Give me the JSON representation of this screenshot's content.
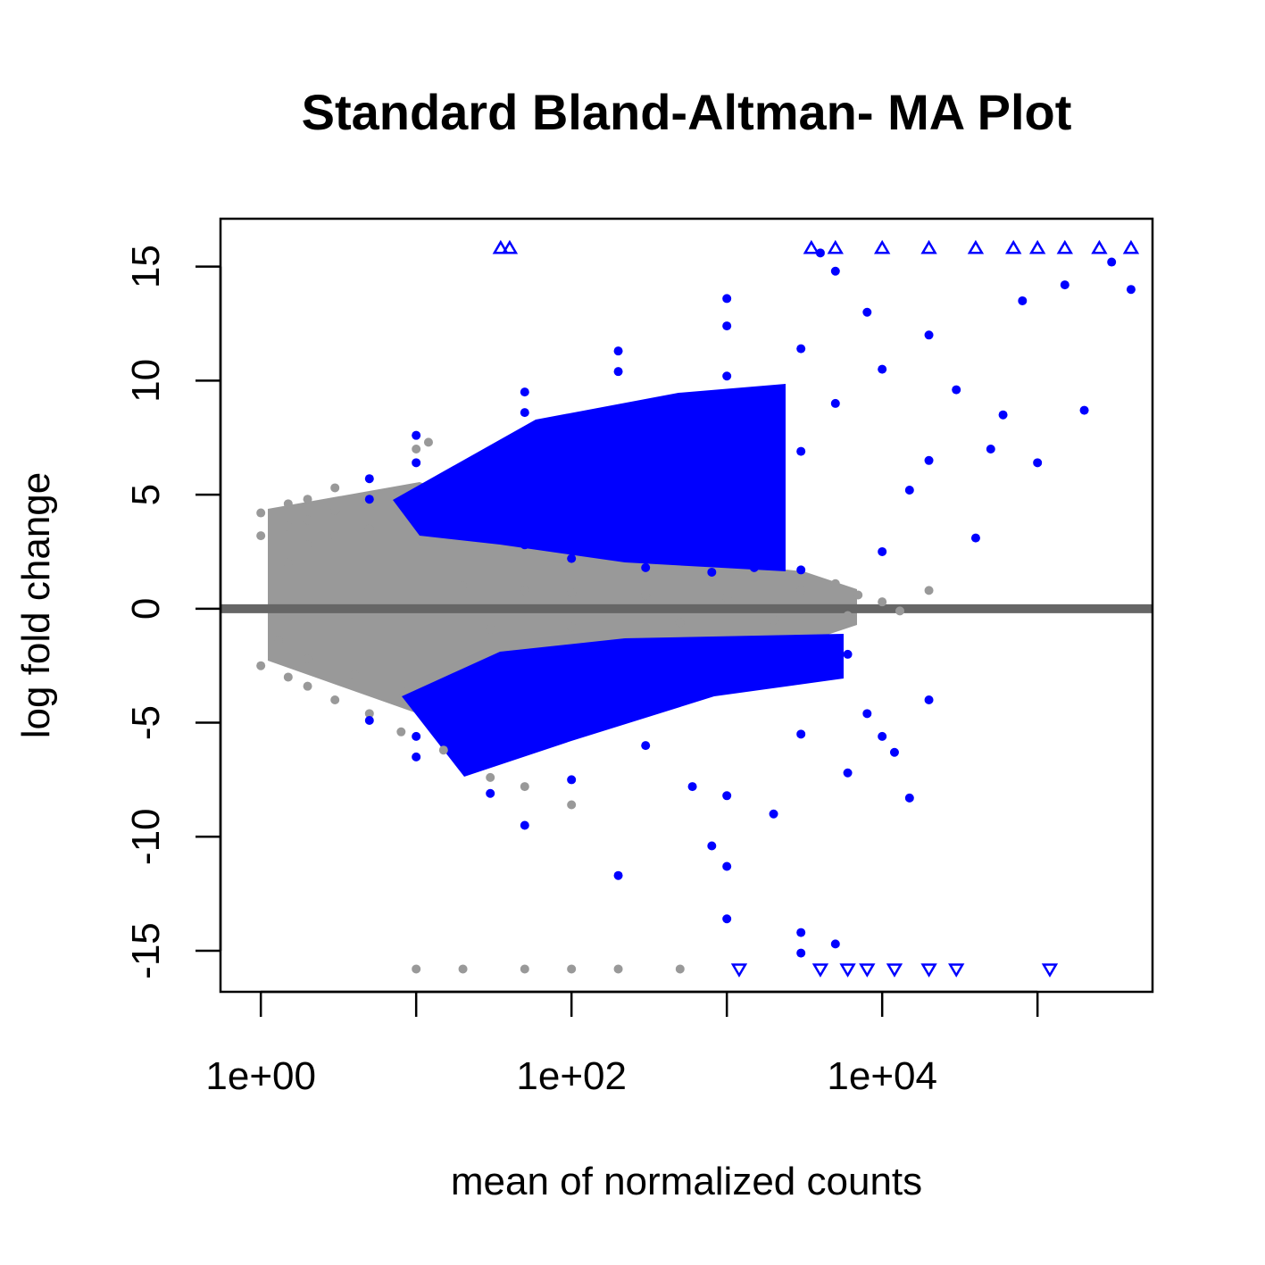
{
  "chart_data": {
    "type": "scatter",
    "title": "Standard Bland-Altman- MA Plot",
    "xlabel": "mean of normalized counts",
    "ylabel": "log fold change",
    "x_scale": "log10",
    "xlim": [
      0.55,
      550000
    ],
    "ylim": [
      -16.8,
      17.1
    ],
    "x_ticks": [
      1,
      10,
      100,
      1000,
      10000,
      100000
    ],
    "x_tick_labels": [
      {
        "value": 1,
        "label": "1e+00"
      },
      {
        "value": 100,
        "label": "1e+02"
      },
      {
        "value": 10000,
        "label": "1e+04"
      }
    ],
    "y_ticks": [
      {
        "value": -15,
        "label": "-15"
      },
      {
        "value": -10,
        "label": "-10"
      },
      {
        "value": -5,
        "label": "-5"
      },
      {
        "value": 0,
        "label": "0"
      },
      {
        "value": 5,
        "label": "5"
      },
      {
        "value": 10,
        "label": "10"
      },
      {
        "value": 15,
        "label": "15"
      }
    ],
    "reference_line": {
      "y": 0,
      "color": "#666666"
    },
    "grid": false,
    "series": [
      {
        "role": "not significant",
        "color": "#999999",
        "points": [
          [
            1,
            4.2
          ],
          [
            1.5,
            4.6
          ],
          [
            2,
            4.8
          ],
          [
            3,
            5.3
          ],
          [
            10,
            7.0
          ],
          [
            12,
            7.3
          ],
          [
            1,
            3.2
          ],
          [
            1.5,
            3.6
          ],
          [
            2,
            3.9
          ],
          [
            3,
            4.3
          ],
          [
            1,
            -2.5
          ],
          [
            1.5,
            -3.0
          ],
          [
            2,
            -3.4
          ],
          [
            3,
            -4.0
          ],
          [
            5,
            -4.6
          ],
          [
            8,
            -5.4
          ],
          [
            15,
            -6.2
          ],
          [
            30,
            -7.4
          ],
          [
            50,
            -7.8
          ],
          [
            100,
            -8.6
          ],
          [
            1.5,
            2.0
          ],
          [
            2,
            2.8
          ],
          [
            3,
            3.2
          ],
          [
            5,
            3.5
          ],
          [
            1.3,
            -1.4
          ],
          [
            2,
            -2.2
          ],
          [
            4,
            -2.9
          ],
          [
            8,
            -3.6
          ],
          [
            20,
            1.0
          ],
          [
            50,
            0.8
          ],
          [
            100,
            0.7
          ],
          [
            300,
            0.6
          ],
          [
            1000,
            0.5
          ],
          [
            3000,
            0.8
          ],
          [
            5000,
            1.1
          ],
          [
            7000,
            0.6
          ],
          [
            10000,
            0.3
          ],
          [
            20000,
            0.8
          ],
          [
            30,
            -0.9
          ],
          [
            100,
            -0.8
          ],
          [
            500,
            -0.6
          ],
          [
            2000,
            -0.5
          ],
          [
            6000,
            -0.3
          ],
          [
            13000,
            -0.1
          ],
          [
            10,
            -15.8
          ],
          [
            20,
            -15.8
          ],
          [
            50,
            -15.8
          ],
          [
            100,
            -15.8
          ],
          [
            200,
            -15.8
          ],
          [
            500,
            -15.8
          ]
        ]
      },
      {
        "role": "significant",
        "color": "#0000ff",
        "points": [
          [
            5,
            5.7
          ],
          [
            10,
            7.6
          ],
          [
            50,
            9.5
          ],
          [
            200,
            11.3
          ],
          [
            1000,
            13.6
          ],
          [
            4000,
            15.6
          ],
          [
            5,
            4.8
          ],
          [
            10,
            6.4
          ],
          [
            50,
            8.6
          ],
          [
            200,
            10.4
          ],
          [
            1000,
            12.4
          ],
          [
            5000,
            14.8
          ],
          [
            50,
            6.8
          ],
          [
            200,
            8.3
          ],
          [
            1000,
            10.2
          ],
          [
            3000,
            11.4
          ],
          [
            8000,
            13.0
          ],
          [
            20,
            4.5
          ],
          [
            30,
            3.6
          ],
          [
            50,
            2.8
          ],
          [
            100,
            2.2
          ],
          [
            300,
            1.8
          ],
          [
            800,
            1.6
          ],
          [
            1500,
            1.8
          ],
          [
            3000,
            1.7
          ],
          [
            20,
            5.5
          ],
          [
            40,
            6.3
          ],
          [
            100,
            5.6
          ],
          [
            300,
            7.5
          ],
          [
            600,
            4.5
          ],
          [
            1000,
            5.2
          ],
          [
            3000,
            6.9
          ],
          [
            5000,
            9.0
          ],
          [
            10000,
            10.5
          ],
          [
            20000,
            12.0
          ],
          [
            30000,
            9.6
          ],
          [
            50000,
            7.0
          ],
          [
            80000,
            13.5
          ],
          [
            100000,
            6.4
          ],
          [
            150000,
            14.2
          ],
          [
            200000,
            8.7
          ],
          [
            300000,
            15.2
          ],
          [
            400000,
            14.0
          ],
          [
            10000,
            2.5
          ],
          [
            15000,
            5.2
          ],
          [
            20000,
            6.5
          ],
          [
            40000,
            3.1
          ],
          [
            60000,
            8.5
          ],
          [
            5,
            -4.9
          ],
          [
            10,
            -6.5
          ],
          [
            50,
            -9.5
          ],
          [
            200,
            -11.7
          ],
          [
            1000,
            -13.6
          ],
          [
            3000,
            -15.1
          ],
          [
            10,
            -5.6
          ],
          [
            30,
            -6.6
          ],
          [
            100,
            -5.1
          ],
          [
            300,
            -3.0
          ],
          [
            1000,
            -2.1
          ],
          [
            3000,
            -2.5
          ],
          [
            6000,
            -2.0
          ],
          [
            30,
            -8.1
          ],
          [
            100,
            -7.5
          ],
          [
            300,
            -6.0
          ],
          [
            600,
            -7.8
          ],
          [
            1000,
            -8.2
          ],
          [
            2000,
            -9.0
          ],
          [
            3000,
            -5.5
          ],
          [
            6000,
            -7.2
          ],
          [
            8000,
            -4.6
          ],
          [
            800,
            -10.4
          ],
          [
            1000,
            -11.3
          ],
          [
            3000,
            -14.2
          ],
          [
            5000,
            -14.7
          ],
          [
            10000,
            -5.6
          ],
          [
            12000,
            -6.3
          ],
          [
            15000,
            -8.3
          ],
          [
            20000,
            -4.0
          ],
          [
            70,
            -4.2
          ],
          [
            150,
            -3.4
          ],
          [
            400,
            -2.3
          ],
          [
            1500,
            -1.6
          ],
          [
            5000,
            -1.5
          ]
        ],
        "up_triangles": [
          [
            35,
            15.8
          ],
          [
            40,
            15.8
          ],
          [
            3500,
            15.8
          ],
          [
            5000,
            15.8
          ],
          [
            10000,
            15.8
          ],
          [
            20000,
            15.8
          ],
          [
            40000,
            15.8
          ],
          [
            70000,
            15.8
          ],
          [
            100000,
            15.8
          ],
          [
            150000,
            15.8
          ],
          [
            250000,
            15.8
          ],
          [
            400000,
            15.8
          ]
        ],
        "down_triangles": [
          [
            1200,
            -15.8
          ],
          [
            4000,
            -15.8
          ],
          [
            6000,
            -15.8
          ],
          [
            8000,
            -15.8
          ],
          [
            12000,
            -15.8
          ],
          [
            20000,
            -15.8
          ],
          [
            30000,
            -15.8
          ],
          [
            120000,
            -15.8
          ]
        ]
      }
    ]
  }
}
